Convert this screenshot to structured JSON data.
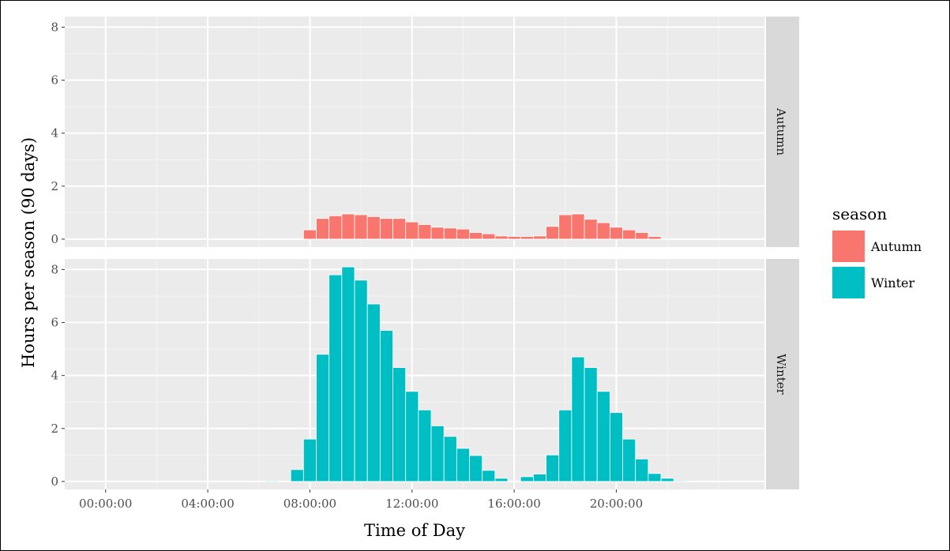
{
  "chart_data": {
    "type": "bar",
    "facet_by": "season",
    "xlabel": "Time of Day",
    "ylabel": "Hours per season (90 days)",
    "ylim": [
      0,
      8.4
    ],
    "y_ticks": [
      0,
      2,
      4,
      6,
      8
    ],
    "x_ticks": [
      "00:00:00",
      "04:00:00",
      "08:00:00",
      "12:00:00",
      "16:00:00",
      "20:00:00"
    ],
    "x_tick_hours": [
      0,
      4,
      8,
      12,
      16,
      20
    ],
    "xlim_hours": [
      -1.6,
      25.8
    ],
    "bin_width_hours": 0.5,
    "legend": {
      "title": "season",
      "position": "right"
    },
    "grid": true,
    "series": [
      {
        "name": "Autumn",
        "color": "#F8766D",
        "bin_start_hours": [
          7.75,
          8.25,
          8.75,
          9.25,
          9.75,
          10.25,
          10.75,
          11.25,
          11.75,
          12.25,
          12.75,
          13.25,
          13.75,
          14.25,
          14.75,
          15.25,
          15.75,
          16.25,
          16.75,
          17.25,
          17.75,
          18.25,
          18.75,
          19.25,
          19.75,
          20.25,
          20.75,
          21.25
        ],
        "values": [
          0.35,
          0.78,
          0.88,
          0.95,
          0.92,
          0.85,
          0.78,
          0.78,
          0.65,
          0.55,
          0.45,
          0.42,
          0.38,
          0.25,
          0.2,
          0.12,
          0.1,
          0.1,
          0.12,
          0.48,
          0.92,
          0.95,
          0.75,
          0.62,
          0.45,
          0.35,
          0.25,
          0.1
        ]
      },
      {
        "name": "Winter",
        "color": "#00BFC4",
        "bin_start_hours": [
          6.25,
          6.75,
          7.25,
          7.75,
          8.25,
          8.75,
          9.25,
          9.75,
          10.25,
          10.75,
          11.25,
          11.75,
          12.25,
          12.75,
          13.25,
          13.75,
          14.25,
          14.75,
          15.25,
          15.75,
          16.25,
          16.75,
          17.25,
          17.75,
          18.25,
          18.75,
          19.25,
          19.75,
          20.25,
          20.75,
          21.25,
          21.75,
          22.25
        ],
        "values": [
          0.03,
          0.0,
          0.45,
          1.6,
          4.8,
          7.8,
          8.1,
          7.6,
          6.7,
          5.7,
          4.3,
          3.4,
          2.7,
          2.1,
          1.7,
          1.25,
          0.98,
          0.42,
          0.12,
          0.0,
          0.18,
          0.28,
          1.0,
          2.7,
          4.7,
          4.3,
          3.4,
          2.6,
          1.6,
          0.85,
          0.3,
          0.12,
          0.02
        ]
      }
    ]
  }
}
